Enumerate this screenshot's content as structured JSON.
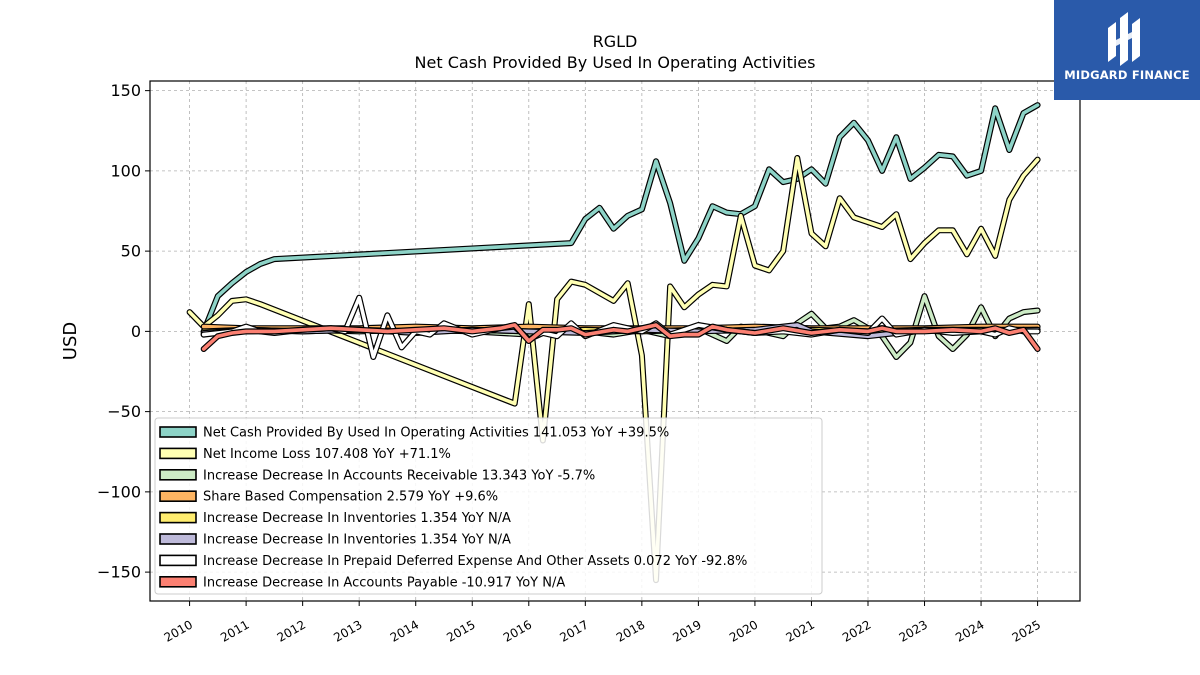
{
  "brand": {
    "name": "MIDGARD FINANCE",
    "logo_icon": "midgard-m-logo-icon",
    "color": "#2a5aaa"
  },
  "chart_data": {
    "type": "line",
    "title": "RGLD",
    "subtitle": "Net Cash Provided By Used In Operating Activities",
    "ylabel": "USD",
    "xlabel": "",
    "ylim": [
      -168,
      156
    ],
    "xlim": [
      2009.3,
      2025.75
    ],
    "yticks": [
      150,
      100,
      50,
      0,
      -50,
      -100,
      -150
    ],
    "ytick_labels": [
      "150",
      "100",
      "50",
      "0",
      "−50",
      "−100",
      "−150"
    ],
    "xticks": [
      2010,
      2011,
      2012,
      2013,
      2014,
      2015,
      2016,
      2017,
      2018,
      2019,
      2020,
      2021,
      2022,
      2023,
      2024,
      2025
    ],
    "xtick_labels": [
      "2010",
      "2011",
      "2012",
      "2013",
      "2014",
      "2015",
      "2016",
      "2017",
      "2018",
      "2019",
      "2020",
      "2021",
      "2022",
      "2023",
      "2024",
      "2025"
    ],
    "grid": true,
    "legend_position": "lower-left",
    "series": [
      {
        "name": "Net Cash Provided By Used In Operating Activities",
        "legend_label": "Net Cash Provided By Used In Operating Activities  141.053 YoY +39.5%",
        "color": "#8dd3c7",
        "x": [
          2010.25,
          2010.5,
          2010.75,
          2011.0,
          2011.25,
          2011.5,
          2016.75,
          2017.0,
          2017.25,
          2017.5,
          2017.75,
          2018.0,
          2018.25,
          2018.5,
          2018.75,
          2019.0,
          2019.25,
          2019.5,
          2019.75,
          2020.0,
          2020.25,
          2020.5,
          2020.75,
          2021.0,
          2021.25,
          2021.5,
          2021.75,
          2022.0,
          2022.25,
          2022.5,
          2022.75,
          2023.0,
          2023.25,
          2023.5,
          2023.75,
          2024.0,
          2024.25,
          2024.5,
          2024.75,
          2025.0
        ],
        "y": [
          0,
          22,
          30,
          37,
          42,
          45,
          55,
          70,
          77,
          64,
          72,
          76,
          106,
          80,
          44,
          58,
          78,
          74,
          73,
          78,
          101,
          93,
          95,
          101,
          92,
          121,
          130,
          119,
          100,
          121,
          95,
          102,
          110,
          109,
          97,
          100,
          139,
          113,
          136,
          141
        ]
      },
      {
        "name": "Net Income Loss",
        "legend_label": "Net Income Loss  107.408 YoY +71.1%",
        "color": "#ffffb3",
        "x": [
          2010.0,
          2010.25,
          2010.5,
          2010.75,
          2011.0,
          2011.25,
          2015.75,
          2016.0,
          2016.25,
          2016.5,
          2016.75,
          2017.0,
          2017.25,
          2017.5,
          2017.75,
          2018.0,
          2018.25,
          2018.5,
          2018.75,
          2019.0,
          2019.25,
          2019.5,
          2019.75,
          2020.0,
          2020.25,
          2020.5,
          2020.75,
          2021.0,
          2021.25,
          2021.5,
          2021.75,
          2022.0,
          2022.25,
          2022.5,
          2022.75,
          2023.0,
          2023.25,
          2023.5,
          2023.75,
          2024.0,
          2024.25,
          2024.5,
          2024.75,
          2025.0
        ],
        "y": [
          12,
          3,
          10,
          19,
          20,
          17,
          -45,
          17,
          -68,
          20,
          31,
          29,
          24,
          19,
          30,
          -15,
          -155,
          28,
          15,
          23,
          29,
          28,
          72,
          41,
          38,
          50,
          108,
          61,
          53,
          83,
          71,
          68,
          65,
          73,
          45,
          55,
          63,
          63,
          48,
          64,
          47,
          82,
          97,
          107
        ]
      },
      {
        "name": "Increase Decrease In Accounts Receivable",
        "legend_label": "Increase Decrease In Accounts Receivable  13.343 YoY -5.7%",
        "color": "#bebada",
        "x": [
          2010.25,
          2010.5,
          2010.75,
          2011.0,
          2012.0,
          2013.0,
          2014.0,
          2015.0,
          2016.0,
          2016.5,
          2017.0,
          2017.5,
          2018.0,
          2018.5,
          2019.0,
          2019.5,
          2019.75,
          2020.0,
          2020.5,
          2020.75,
          2021.0,
          2021.25,
          2021.5,
          2021.75,
          2022.0,
          2022.25,
          2022.5,
          2022.75,
          2023.0,
          2023.25,
          2023.5,
          2023.75,
          2024.0,
          2024.25,
          2024.5,
          2024.75,
          2025.0
        ],
        "y": [
          -2,
          1,
          2,
          0,
          1,
          0,
          1,
          0,
          -2,
          2,
          0,
          -2,
          1,
          -3,
          2,
          -6,
          3,
          1,
          -3,
          5,
          11,
          2,
          3,
          7,
          2,
          -3,
          -16,
          -7,
          22,
          -3,
          -11,
          -2,
          15,
          -3,
          8,
          12,
          13
        ],
        "color_override": "#ccebc5"
      },
      {
        "name": "Share Based Compensation",
        "legend_label": "Share Based Compensation  2.579 YoY +9.6%",
        "color": "#fdb462",
        "x": [
          2010.25,
          2011.0,
          2012.0,
          2013.0,
          2014.0,
          2015.0,
          2016.0,
          2017.0,
          2018.0,
          2019.0,
          2020.0,
          2021.0,
          2022.0,
          2023.0,
          2024.0,
          2025.0
        ],
        "y": [
          3,
          2,
          2,
          2,
          3,
          2,
          3,
          2,
          2,
          2,
          3,
          2,
          2,
          2,
          3,
          3
        ]
      },
      {
        "name": "Increase Decrease In Inventories",
        "legend_label": "Increase Decrease In Inventories  1.354 YoY N/A",
        "color": "#ffed6f",
        "x": [
          2010.25,
          2011.0,
          2012.0,
          2013.0,
          2014.0,
          2015.0,
          2016.0,
          2017.0,
          2018.0,
          2019.0,
          2020.0,
          2021.0,
          2022.0,
          2023.0,
          2024.0,
          2025.0
        ],
        "y": [
          0,
          1,
          0,
          1,
          0,
          1,
          0,
          1,
          0,
          1,
          0,
          1,
          0,
          1,
          1,
          1
        ]
      },
      {
        "name": "Increase Decrease In Inventories",
        "legend_label": "Increase Decrease In Inventories  1.354 YoY N/A",
        "color": "#bebada",
        "x": [
          2010.25,
          2011.0,
          2012.0,
          2013.0,
          2014.0,
          2015.0,
          2016.0,
          2017.0,
          2018.0,
          2019.0,
          2020.0,
          2020.75,
          2021.0,
          2022.0,
          2023.0,
          2024.0,
          2025.0
        ],
        "y": [
          -1,
          1,
          0,
          1,
          -1,
          1,
          0,
          -1,
          1,
          0,
          1,
          4,
          0,
          -3,
          1,
          0,
          1
        ]
      },
      {
        "name": "Increase Decrease In Prepaid Deferred Expense And Other Assets",
        "legend_label": "Increase Decrease In Prepaid Deferred Expense And Other Assets  0.072 YoY -92.8%",
        "color": "#ffffff",
        "x": [
          2010.25,
          2010.5,
          2010.75,
          2011.0,
          2011.25,
          2011.5,
          2012.0,
          2012.5,
          2012.75,
          2013.0,
          2013.25,
          2013.5,
          2013.75,
          2014.0,
          2014.25,
          2014.5,
          2015.0,
          2015.5,
          2015.75,
          2016.0,
          2016.25,
          2016.5,
          2016.75,
          2017.0,
          2017.5,
          2018.0,
          2018.25,
          2018.5,
          2019.0,
          2019.5,
          2020.0,
          2020.5,
          2021.0,
          2021.5,
          2022.0,
          2022.25,
          2022.5,
          2023.0,
          2023.5,
          2024.0,
          2024.25,
          2024.5,
          2024.75,
          2025.0
        ],
        "y": [
          -2,
          -1,
          0,
          3,
          0,
          -1,
          1,
          2,
          0,
          21,
          -16,
          10,
          -10,
          0,
          -2,
          5,
          -2,
          2,
          3,
          -5,
          -1,
          -3,
          5,
          -3,
          4,
          0,
          5,
          -2,
          4,
          1,
          -1,
          0,
          -2,
          1,
          -1,
          8,
          -2,
          1,
          -1,
          0,
          -2,
          2,
          0,
          0
        ]
      },
      {
        "name": "Increase Decrease In Accounts Payable",
        "legend_label": "Increase Decrease In Accounts Payable  -10.917 YoY N/A",
        "color": "#fb8072",
        "x": [
          2010.25,
          2010.5,
          2010.75,
          2011.0,
          2011.5,
          2012.0,
          2012.5,
          2013.0,
          2013.5,
          2014.0,
          2014.5,
          2015.0,
          2015.5,
          2015.75,
          2016.0,
          2016.25,
          2016.5,
          2016.75,
          2017.0,
          2017.5,
          2017.75,
          2018.0,
          2018.25,
          2018.5,
          2018.75,
          2019.0,
          2019.25,
          2019.5,
          2020.0,
          2020.5,
          2021.0,
          2021.5,
          2022.0,
          2022.25,
          2022.5,
          2023.0,
          2023.5,
          2024.0,
          2024.25,
          2024.5,
          2024.75,
          2025.0
        ],
        "y": [
          -11,
          -3,
          -1,
          0,
          0,
          1,
          2,
          1,
          0,
          1,
          2,
          0,
          2,
          4,
          -6,
          1,
          1,
          2,
          -2,
          1,
          0,
          2,
          4,
          -3,
          -2,
          -2,
          3,
          1,
          -1,
          2,
          -1,
          1,
          0,
          2,
          0,
          0,
          1,
          0,
          2,
          -1,
          1,
          -11
        ]
      }
    ]
  }
}
